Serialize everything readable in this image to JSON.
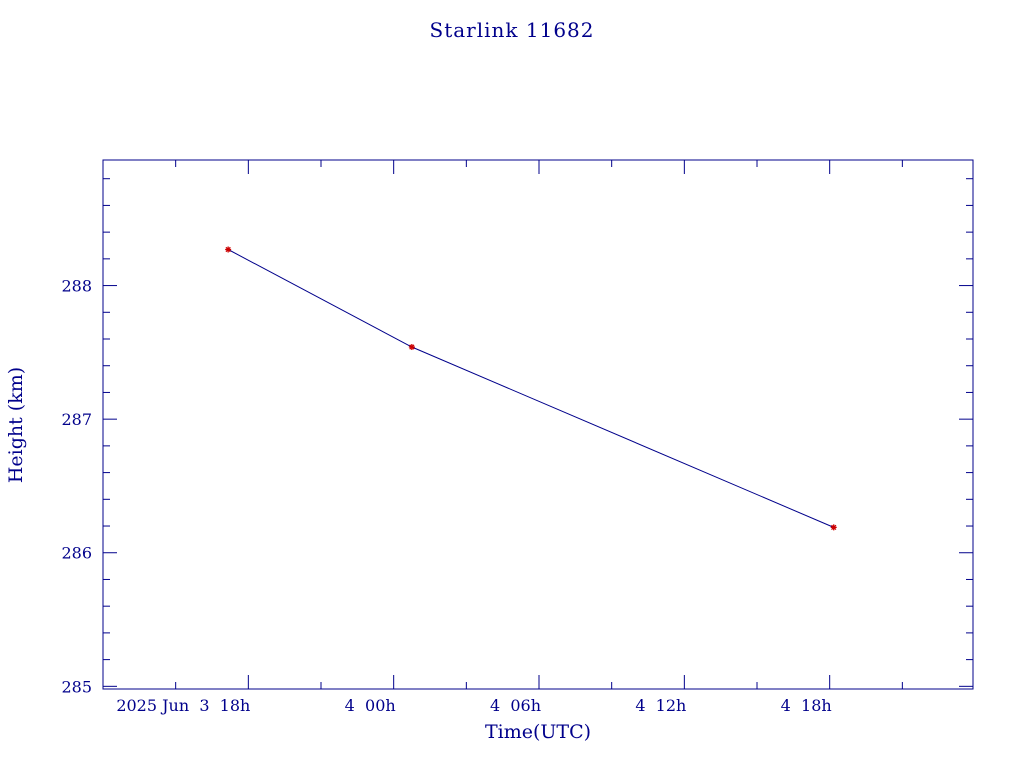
{
  "chart_data": {
    "type": "line",
    "title": "Starlink 11682",
    "xlabel": "Time(UTC)",
    "ylabel": "Height (km)",
    "x_axis_kind": "datetime",
    "x_range": [
      "2025-06-03T12:00:00Z",
      "2025-06-04T23:55:00Z"
    ],
    "y_range": [
      284.98,
      288.94
    ],
    "x_ticks": [
      {
        "at": "2025-06-03T18:00:00Z",
        "label": "2025 Jun  3  18h"
      },
      {
        "at": "2025-06-04T00:00:00Z",
        "label": "4  00h"
      },
      {
        "at": "2025-06-04T06:00:00Z",
        "label": "4  06h"
      },
      {
        "at": "2025-06-04T12:00:00Z",
        "label": "4  12h"
      },
      {
        "at": "2025-06-04T18:00:00Z",
        "label": "4  18h"
      }
    ],
    "y_ticks": [
      285,
      286,
      287,
      288
    ],
    "series": [
      {
        "color": "#00008b",
        "marker_color": "#cc0000",
        "points": [
          {
            "x": "2025-06-03T17:10:00Z",
            "y": 288.27
          },
          {
            "x": "2025-06-04T00:45:00Z",
            "y": 287.54
          },
          {
            "x": "2025-06-04T18:10:00Z",
            "y": 286.19
          }
        ]
      }
    ],
    "grid": false
  }
}
